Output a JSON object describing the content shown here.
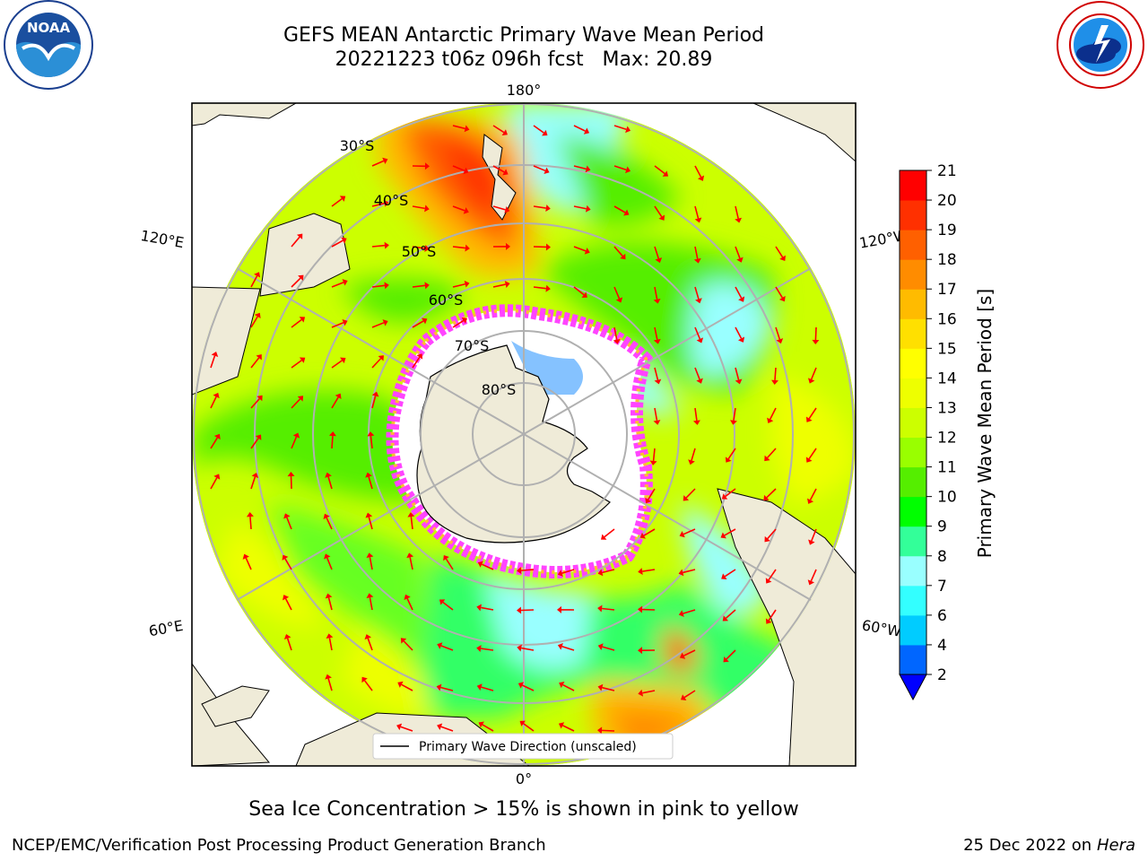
{
  "title": {
    "line1": "GEFS MEAN Antarctic Primary Wave Mean Period",
    "line2": "20221223 t06z 096h fcst   Max: 20.89"
  },
  "map": {
    "projection": "south-polar-stereographic",
    "lon_labels": {
      "top": "180°",
      "bottom": "0°",
      "upper_left": "120°E",
      "upper_right": "120°W",
      "lower_left": "60°E",
      "lower_right": "60°W"
    },
    "lat_labels": [
      "30°S",
      "40°S",
      "50°S",
      "60°S",
      "70°S",
      "80°S"
    ],
    "legend": "Primary Wave Direction (unscaled)",
    "colors": {
      "land": "#efebd8",
      "arrow": "#ff0000",
      "grid": "#b0b0b0",
      "sea_ice": "#ff66ff"
    }
  },
  "colorbar": {
    "label": "Primary Wave Mean Period [s]",
    "ticks": [
      "2",
      "4",
      "6",
      "7",
      "8",
      "9",
      "10",
      "11",
      "12",
      "13",
      "14",
      "15",
      "16",
      "17",
      "18",
      "19",
      "20",
      "21"
    ],
    "colors": [
      "#0066ff",
      "#00ccff",
      "#33ffff",
      "#99ffff",
      "#33ff99",
      "#00ff00",
      "#55ee00",
      "#99ff00",
      "#ccff00",
      "#eeff00",
      "#ffff00",
      "#ffe000",
      "#ffbb00",
      "#ff8c00",
      "#ff6000",
      "#ff3000",
      "#ff0000"
    ],
    "extend_color": "#0000ff"
  },
  "footnote": "Sea Ice Concentration > 15% is shown in pink to yellow",
  "credit_left": "NCEP/EMC/Verification Post Processing Product Generation Branch",
  "credit_right": {
    "date": "25 Dec 2022",
    "on": "on",
    "system": "Hera"
  }
}
